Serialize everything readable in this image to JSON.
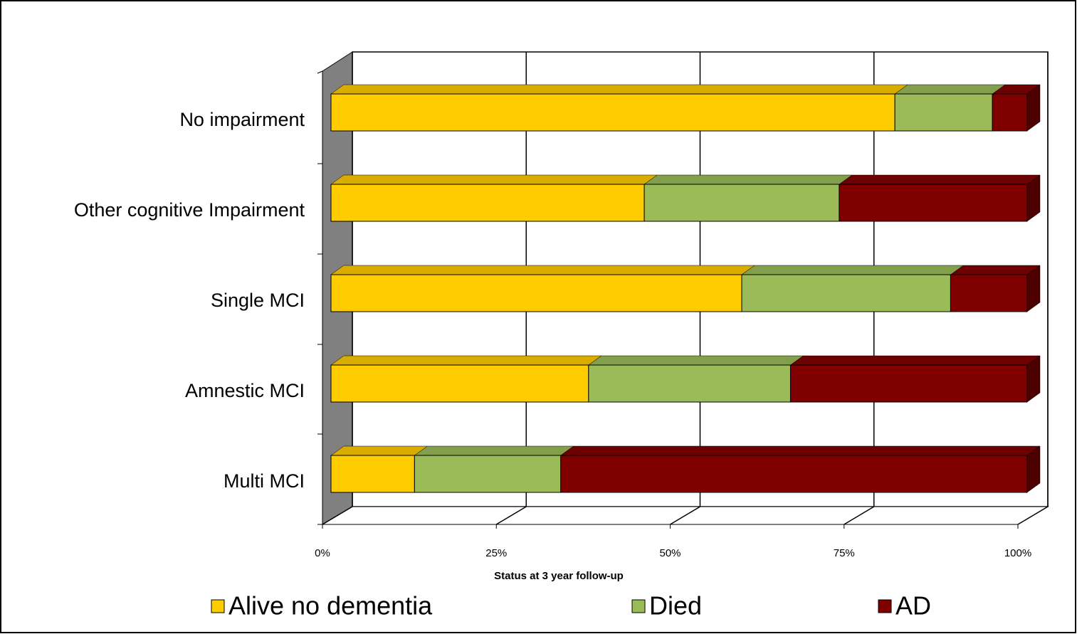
{
  "chart_data": {
    "type": "bar",
    "orientation": "horizontal",
    "stacked": true,
    "x_label": "Status at 3 year follow-up",
    "categories": [
      "No impairment",
      "Other cognitive Impairment",
      "Single MCI",
      "Amnestic MCI",
      "Multi MCI"
    ],
    "series": [
      {
        "name": "Alive no dementia",
        "color": "#FFCC00",
        "values": [
          81,
          45,
          59,
          37,
          12
        ]
      },
      {
        "name": "Died",
        "color": "#9BBB59",
        "values": [
          14,
          28,
          30,
          29,
          21
        ]
      },
      {
        "name": "AD",
        "color": "#800000",
        "values": [
          5,
          27,
          11,
          34,
          67
        ]
      }
    ],
    "xlim": [
      0,
      100
    ],
    "xticks": [
      {
        "value": 0,
        "label": "0%"
      },
      {
        "value": 25,
        "label": "25%"
      },
      {
        "value": 50,
        "label": "50%"
      },
      {
        "value": 75,
        "label": "75%"
      },
      {
        "value": 100,
        "label": "100%"
      }
    ],
    "grid": true,
    "legend": "bottom"
  }
}
